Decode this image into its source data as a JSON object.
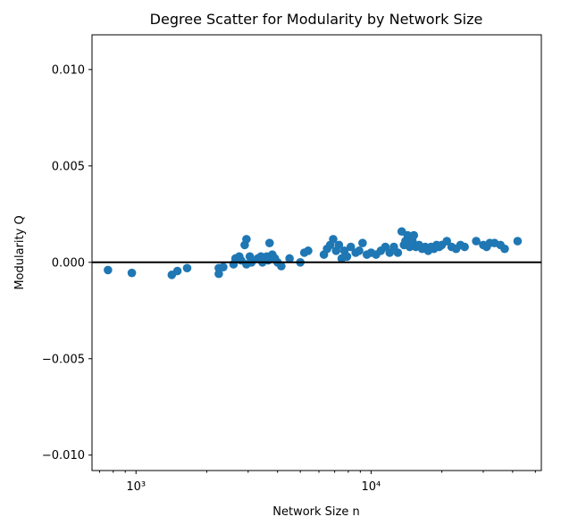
{
  "chart_data": {
    "type": "scatter",
    "title": "Degree Scatter for Modularity by Network Size",
    "xlabel": "Network Size n",
    "ylabel": "Modularity Q",
    "xscale": "log",
    "xlim": [
      650,
      53000
    ],
    "ylim": [
      -0.0108,
      0.0118
    ],
    "xticks": [
      {
        "value": 1000,
        "label": "10³"
      },
      {
        "value": 10000,
        "label": "10⁴"
      }
    ],
    "yticks": [
      {
        "value": 0.01,
        "label": "0.010"
      },
      {
        "value": 0.005,
        "label": "0.005"
      },
      {
        "value": 0.0,
        "label": "0.000"
      },
      {
        "value": -0.005,
        "label": "−0.005"
      },
      {
        "value": -0.01,
        "label": "−0.010"
      }
    ],
    "hline": 0.0,
    "marker_color": "#1f77b4",
    "grid": false,
    "points": [
      {
        "x": 760,
        "y": -0.0004
      },
      {
        "x": 960,
        "y": -0.00055
      },
      {
        "x": 1420,
        "y": -0.00065
      },
      {
        "x": 1500,
        "y": -0.00045
      },
      {
        "x": 1650,
        "y": -0.0003
      },
      {
        "x": 2250,
        "y": -0.0006
      },
      {
        "x": 2250,
        "y": -0.0003
      },
      {
        "x": 2350,
        "y": -0.00025
      },
      {
        "x": 2600,
        "y": -0.0001
      },
      {
        "x": 2650,
        "y": 0.0002
      },
      {
        "x": 2750,
        "y": 0.0003
      },
      {
        "x": 2800,
        "y": 0.0001
      },
      {
        "x": 2900,
        "y": 0.0009
      },
      {
        "x": 2950,
        "y": 0.0012
      },
      {
        "x": 2950,
        "y": -0.0001
      },
      {
        "x": 3050,
        "y": 0.0003
      },
      {
        "x": 3100,
        "y": 0.0
      },
      {
        "x": 3300,
        "y": 0.0002
      },
      {
        "x": 3400,
        "y": 0.0003
      },
      {
        "x": 3450,
        "y": 0.0
      },
      {
        "x": 3550,
        "y": 0.0002
      },
      {
        "x": 3600,
        "y": 0.0003
      },
      {
        "x": 3650,
        "y": 0.0001
      },
      {
        "x": 3700,
        "y": 0.001
      },
      {
        "x": 3800,
        "y": 0.0004
      },
      {
        "x": 3900,
        "y": 0.0002
      },
      {
        "x": 4000,
        "y": 0.0
      },
      {
        "x": 4150,
        "y": -0.0002
      },
      {
        "x": 4500,
        "y": 0.0002
      },
      {
        "x": 5000,
        "y": 0.0
      },
      {
        "x": 5200,
        "y": 0.0005
      },
      {
        "x": 5400,
        "y": 0.0006
      },
      {
        "x": 6300,
        "y": 0.0004
      },
      {
        "x": 6500,
        "y": 0.0007
      },
      {
        "x": 6700,
        "y": 0.0009
      },
      {
        "x": 6900,
        "y": 0.0012
      },
      {
        "x": 7100,
        "y": 0.0006
      },
      {
        "x": 7300,
        "y": 0.0009
      },
      {
        "x": 7500,
        "y": 0.0002
      },
      {
        "x": 7700,
        "y": 0.0006
      },
      {
        "x": 7900,
        "y": 0.0003
      },
      {
        "x": 8200,
        "y": 0.0008
      },
      {
        "x": 8600,
        "y": 0.0005
      },
      {
        "x": 8900,
        "y": 0.0006
      },
      {
        "x": 9200,
        "y": 0.001
      },
      {
        "x": 9600,
        "y": 0.0004
      },
      {
        "x": 10000,
        "y": 0.0005
      },
      {
        "x": 10500,
        "y": 0.0004
      },
      {
        "x": 11000,
        "y": 0.0006
      },
      {
        "x": 11500,
        "y": 0.0008
      },
      {
        "x": 12000,
        "y": 0.0005
      },
      {
        "x": 12500,
        "y": 0.0008
      },
      {
        "x": 13000,
        "y": 0.0005
      },
      {
        "x": 13500,
        "y": 0.0016
      },
      {
        "x": 13800,
        "y": 0.0009
      },
      {
        "x": 14000,
        "y": 0.0011
      },
      {
        "x": 14300,
        "y": 0.0014
      },
      {
        "x": 14600,
        "y": 0.0008
      },
      {
        "x": 15000,
        "y": 0.0011
      },
      {
        "x": 15200,
        "y": 0.0014
      },
      {
        "x": 15500,
        "y": 0.0008
      },
      {
        "x": 16000,
        "y": 0.0009
      },
      {
        "x": 16500,
        "y": 0.0007
      },
      {
        "x": 17000,
        "y": 0.0008
      },
      {
        "x": 17500,
        "y": 0.0006
      },
      {
        "x": 18000,
        "y": 0.0008
      },
      {
        "x": 18500,
        "y": 0.0007
      },
      {
        "x": 19000,
        "y": 0.0009
      },
      {
        "x": 19500,
        "y": 0.0008
      },
      {
        "x": 20000,
        "y": 0.0009
      },
      {
        "x": 21000,
        "y": 0.0011
      },
      {
        "x": 22000,
        "y": 0.0008
      },
      {
        "x": 23000,
        "y": 0.0007
      },
      {
        "x": 24000,
        "y": 0.0009
      },
      {
        "x": 25000,
        "y": 0.0008
      },
      {
        "x": 28000,
        "y": 0.0011
      },
      {
        "x": 30000,
        "y": 0.0009
      },
      {
        "x": 31000,
        "y": 0.0008
      },
      {
        "x": 32000,
        "y": 0.001
      },
      {
        "x": 33500,
        "y": 0.001
      },
      {
        "x": 35500,
        "y": 0.0009
      },
      {
        "x": 37000,
        "y": 0.0007
      },
      {
        "x": 42000,
        "y": 0.0011
      }
    ]
  }
}
